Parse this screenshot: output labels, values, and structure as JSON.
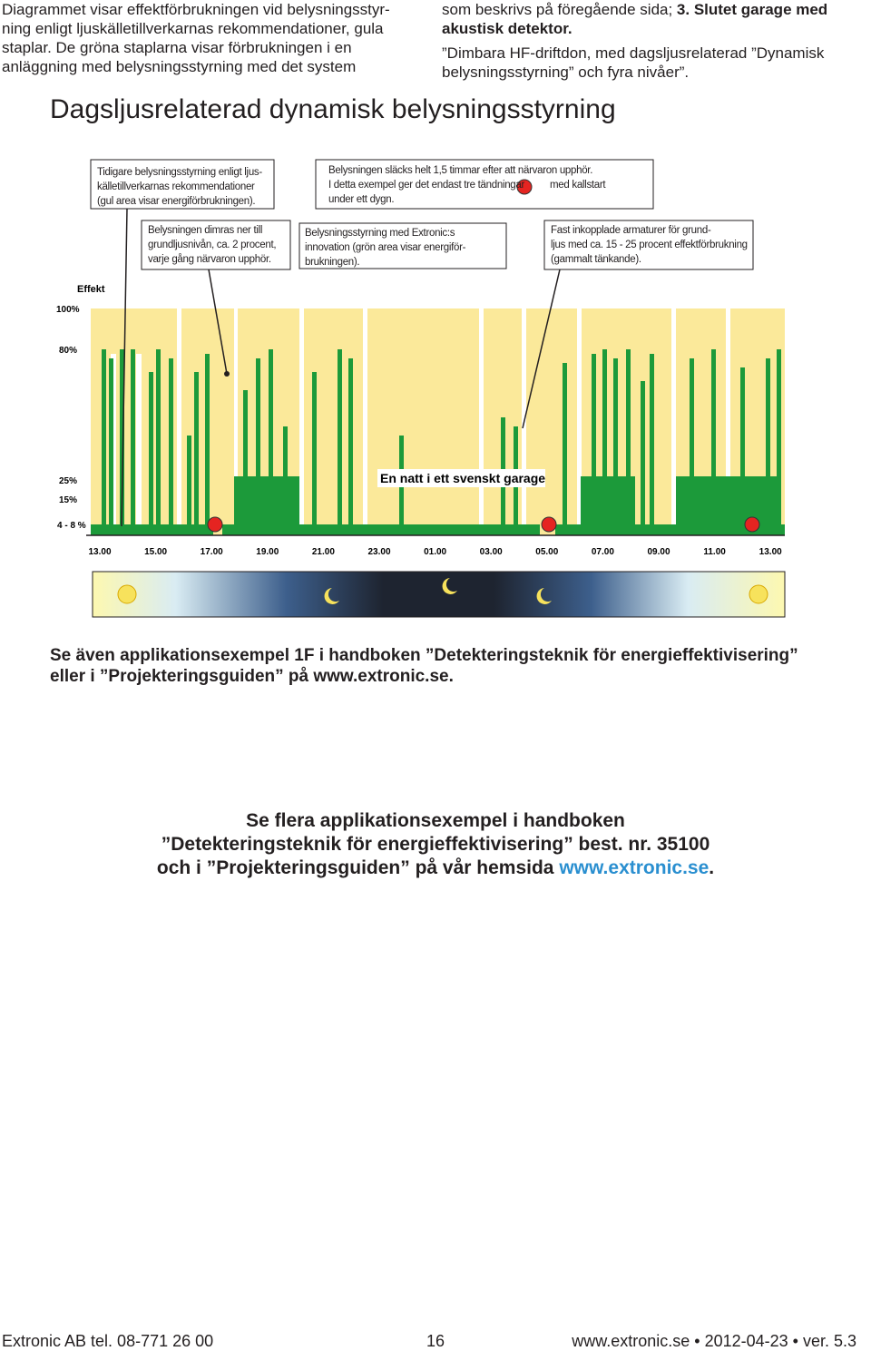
{
  "intro": {
    "left_lines": [
      "Diagrammet visar effektförbrukningen vid belysningsstyr-",
      "ning enligt ljuskälletillverkarnas rekommendationer, gula",
      "staplar. De gröna staplarna visar förbrukningen i en",
      "anläggning med belysningsstyrning med det system"
    ],
    "right": {
      "line1_normal": "som beskrivs på föregående sida; ",
      "line1_bold": "3. Slutet garage med",
      "line2_bold": "akustisk detektor.",
      "line3": "”Dimbara HF-driftdon, med dagsljusrelaterad ”Dynamisk",
      "line4": "belysningsstyrning” och fyra nivåer”."
    }
  },
  "heading": "Dagsljusrelaterad dynamisk belysningsstyrning",
  "diagram": {
    "annotations": {
      "previous": [
        "Tidigare belysningsstyrning enligt ljus-",
        "källetillverkarnas rekommendationer",
        "(gul area visar energiförbrukningen)."
      ],
      "off": {
        "line1": "Belysningen släcks helt 1,5 timmar efter att närvaron upphör.",
        "line2_start": "I detta exempel ger det endast tre tändningar",
        "line2_end": "med kallstart",
        "line3": "under ett dygn."
      },
      "dimmed": [
        "Belysningen dimras ner till",
        "grundljusnivån, ca. 2 procent,",
        "varje gång närvaron upphör."
      ],
      "extronic": [
        "Belysningsstyrning med Extronic:s",
        "innovation (grön area visar energiför-",
        "brukningen)."
      ],
      "fixed": [
        "Fast inkopplade armaturer för grund-",
        "ljus med ca. 15 - 25 procent effektförbrukning",
        "(gammalt tänkande)."
      ]
    },
    "effekt": "Effekt",
    "level_labels": [
      "100%",
      "80%",
      "25%",
      "15%",
      "4 - 8 %"
    ],
    "time_labels": [
      "13.00",
      "15.00",
      "17.00",
      "19.00",
      "21.00",
      "23.00",
      "01.00",
      "03.00",
      "05.00",
      "07.00",
      "09.00",
      "11.00",
      "13.00"
    ],
    "caption": "En natt i ett svenskt garage"
  },
  "see_also": [
    "Se även applikationsexempel 1F i handboken ”Detekteringsteknik för energieffektivisering”",
    "eller i ”Projekteringsguiden” på www.extronic.se."
  ],
  "more": {
    "line1": "Se flera applikationsexempel i handboken",
    "line2": "”Detekteringsteknik för energieffektivisering” best. nr. 35100",
    "line3": "och i ”Projekteringsguiden” på vår hemsida ",
    "link": "www.extronic.se",
    "end": "."
  },
  "footer": {
    "left": "Extronic AB  tel. 08-771 26 00",
    "page": "16",
    "right": "www.extronic.se • 2012-04-23 • ver. 5.3"
  }
}
